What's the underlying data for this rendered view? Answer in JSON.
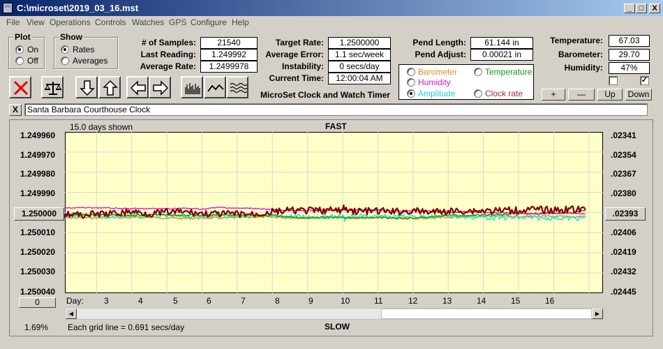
{
  "window": {
    "title": "C:\\microset\\2019_03_16.mst",
    "min": "_",
    "max": "□",
    "close": "X"
  },
  "menu": [
    "File",
    "View",
    "Operations",
    "Controls",
    "Watches",
    "GPS",
    "Configure",
    "Help"
  ],
  "plot_group": {
    "label": "Plot",
    "on": "On",
    "off": "Off",
    "selected": "On"
  },
  "show_group": {
    "label": "Show",
    "rates": "Rates",
    "averages": "Averages",
    "selected": "Rates"
  },
  "stats": {
    "samples_label": "# of Samples:",
    "samples": "21540",
    "last_label": "Last Reading:",
    "last": "1.249992",
    "avg_label": "Average Rate:",
    "avg": "1.2499978",
    "target_label": "Target Rate:",
    "target": "1.2500000",
    "avgerr_label": "Average Error:",
    "avgerr": "1.1 sec/week",
    "instab_label": "Instability:",
    "instab": "0 secs/day",
    "time_label": "Current Time:",
    "time": "12:00:04 AM",
    "pendlen_label": "Pend Length:",
    "pendlen": "61.144 in",
    "pendadj_label": "Pend Adjust:",
    "pendadj": "0.00021 in",
    "temp_label": "Temperature:",
    "temp": "67.03",
    "baro_label": "Barometer:",
    "baro": "29.70",
    "hum_label": "Humidity:",
    "hum": "47%"
  },
  "app_name": "MicroSet Clock and Watch Timer",
  "series_select": {
    "barometer": "Barometer",
    "temperature": "Temperature",
    "humidity": "Humidity",
    "amplitude": "Amplitude",
    "clockrate": "Clock rate",
    "selected": "Amplitude"
  },
  "adjust_buttons": {
    "plus": "+",
    "minus": "—",
    "up": "Up",
    "down": "Down"
  },
  "clock_name": {
    "close": "X",
    "value": "Santa Barbara Courthouse Clock"
  },
  "colors": {
    "clock": "#800000",
    "humidity": "#e020e0",
    "temperature": "#10a010",
    "amplitude": "#20e0e0",
    "barometer": "#e88a20"
  },
  "chart": {
    "days_shown": "15.0 days shown",
    "top_label": "FAST",
    "bottom_label": "SLOW",
    "grid_note": "Each grid line = 0.691 secs/day",
    "zoom": "1.69%",
    "day_label": "Day:",
    "left_button": "1.250000",
    "right_button": ".02393",
    "scroll_button": "0",
    "left_ticks": [
      "1.249960",
      "1.249970",
      "1.249980",
      "1.249990",
      "1.250010",
      "1.250020",
      "1.250030",
      "1.250040"
    ],
    "right_ticks": [
      ".02341",
      ".02354",
      ".02367",
      ".02380",
      ".02406",
      ".02419",
      ".02432",
      ".02445"
    ],
    "day_ticks": [
      "3",
      "4",
      "5",
      "6",
      "7",
      "8",
      "9",
      "10",
      "11",
      "12",
      "13",
      "14",
      "15",
      "16"
    ]
  },
  "chart_data": {
    "type": "line",
    "title": "FAST",
    "xlabel": "Day",
    "x_range": [
      2.1,
      17.4
    ],
    "ylim_left": [
      1.24996,
      1.25004
    ],
    "ylim_right": [
      0.02341,
      0.02445
    ],
    "grid": true,
    "series": [
      {
        "name": "Clock rate",
        "color": "#800000",
        "x": [
          2.0,
          2.5,
          3.0,
          3.5,
          4.0,
          4.5,
          5.0,
          5.5,
          6.0,
          6.5,
          7.0,
          7.5,
          8.0,
          8.5,
          9.0,
          9.5,
          10.0,
          10.05,
          10.1,
          10.5,
          11.0,
          11.5,
          12.0,
          12.5,
          13.0,
          13.5,
          14.0,
          14.5,
          15.0,
          15.5,
          16.0,
          16.5,
          16.9
        ],
        "y": [
          1.2500005,
          1.2500012,
          1.2500008,
          1.2500005,
          1.2499995,
          1.2500006,
          1.2499998,
          1.2499997,
          1.2500005,
          1.2500008,
          1.2500007,
          1.2500009,
          1.2499997,
          1.249999,
          1.2499991,
          1.2499989,
          1.249999,
          1.2499968,
          1.2499991,
          1.2499993,
          1.2499993,
          1.2499996,
          1.2499993,
          1.2499997,
          1.2499994,
          1.2499991,
          1.249999,
          1.249999,
          1.2499988,
          1.2499985,
          1.2499988,
          1.2499984,
          1.2499988
        ]
      },
      {
        "name": "Humidity",
        "color": "#e020e0",
        "x": [
          2.0,
          2.5,
          3.0,
          3.5,
          4.0,
          4.5,
          5.0,
          5.5,
          6.0,
          6.5,
          7.0,
          7.5,
          8.0,
          8.5,
          9.0,
          9.5,
          10.0,
          10.5,
          11.0,
          11.5,
          12.0,
          12.5,
          13.0,
          13.5,
          14.0,
          14.5,
          15.0,
          15.5,
          16.0,
          16.5,
          16.9
        ],
        "y": [
          1.2499978,
          1.2499976,
          1.2499976,
          1.2499979,
          1.2499981,
          1.2499981,
          1.2499981,
          1.2499979,
          1.2499983,
          1.2499974,
          1.2499979,
          1.2499979,
          1.2499986,
          1.249999,
          1.2499989,
          1.249999,
          1.2499989,
          1.2499988,
          1.2499987,
          1.2499993,
          1.249999,
          1.2499993,
          1.2499998,
          1.2499996,
          1.25,
          1.2500001,
          1.2500004,
          1.2500006,
          1.2500004,
          1.2500003,
          1.2500007
        ]
      },
      {
        "name": "Temperature",
        "color": "#10a010",
        "x": [
          2.0,
          2.5,
          3.0,
          3.5,
          4.0,
          4.5,
          5.0,
          5.5,
          6.0,
          6.5,
          7.0,
          7.5,
          8.0,
          8.5,
          9.0,
          9.5,
          10.0,
          10.5,
          11.0,
          11.5,
          12.0,
          12.5,
          13.0,
          13.5,
          14.0,
          14.5,
          15.0,
          15.5,
          16.0,
          16.5,
          16.9
        ],
        "y": [
          1.250001,
          1.2500011,
          1.2500012,
          1.2500012,
          1.2500015,
          1.2500012,
          1.2500011,
          1.2500015,
          1.2500013,
          1.2500013,
          1.2500013,
          1.2500014,
          1.2500014,
          1.2500022,
          1.2500027,
          1.2500023,
          1.2500026,
          1.2500026,
          1.2500025,
          1.2500028,
          1.2500027,
          1.2500021,
          1.2500013,
          1.2500015,
          1.2500012,
          1.250001,
          1.2500007,
          1.2500006,
          1.2500002,
          1.2500002,
          1.2499992
        ]
      },
      {
        "name": "Amplitude",
        "color": "#20e0e0",
        "x": [
          2.0,
          2.5,
          3.0,
          3.5,
          4.0,
          4.5,
          5.0,
          5.5,
          6.0,
          6.5,
          7.0,
          7.5,
          8.0,
          8.5,
          9.0,
          9.5,
          10.0,
          10.05,
          10.1,
          10.5,
          11.0,
          11.5,
          12.0,
          12.5,
          13.0,
          13.5,
          14.0,
          14.5,
          15.0,
          15.5,
          16.0,
          16.5,
          16.9
        ],
        "y": [
          1.2500018,
          1.2500016,
          1.2500018,
          1.2500018,
          1.2500018,
          1.2500017,
          1.2500018,
          1.2500018,
          1.2500018,
          1.2500017,
          1.2500016,
          1.2500017,
          1.250002,
          1.250002,
          1.250002,
          1.250002,
          1.250002,
          1.2500035,
          1.250002,
          1.2500019,
          1.250002,
          1.2500021,
          1.2500019,
          1.2500019,
          1.250002,
          1.2500022,
          1.2500024,
          1.2500026,
          1.2500026,
          1.2500028,
          1.2500026,
          1.2500029,
          1.2500027
        ]
      },
      {
        "name": "Barometer",
        "color": "#e88a20",
        "x": [
          2.0,
          2.5,
          3.0,
          3.5,
          4.0,
          4.5,
          5.0,
          5.5,
          6.0,
          6.5,
          7.0,
          7.5,
          8.0,
          8.5,
          9.0,
          9.5,
          10.0,
          10.5,
          11.0,
          11.5,
          12.0,
          12.5,
          13.0,
          13.5,
          14.0,
          14.5,
          15.0,
          15.5,
          16.0,
          16.5,
          16.9
        ],
        "y": [
          1.2500026,
          1.2500026,
          1.2500026,
          1.2500025,
          1.2500026,
          1.2500023,
          1.2500027,
          1.2500029,
          1.2500027,
          1.2500027,
          1.2500026,
          1.2500022,
          1.2500023,
          1.2500025,
          1.2500027,
          1.2500026,
          1.2500027,
          1.2500024,
          1.2500026,
          1.2500028,
          1.250003,
          1.2500027,
          1.2500022,
          1.2500017,
          1.2500019,
          1.2500018,
          1.2500018,
          1.2500019,
          1.250002,
          1.2500021,
          1.2500019
        ]
      }
    ]
  }
}
